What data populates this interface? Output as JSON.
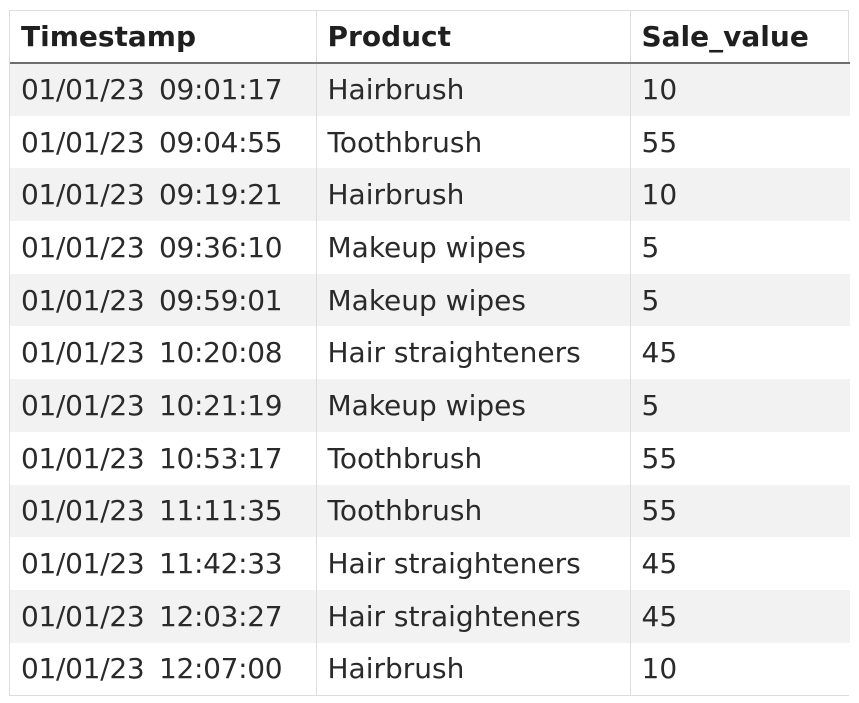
{
  "table": {
    "headers": [
      "Timestamp",
      "Product",
      "Sale_value"
    ],
    "rows": [
      [
        "01/01/23  09:01:17",
        "Hairbrush",
        "10"
      ],
      [
        "01/01/23  09:04:55",
        "Toothbrush",
        "55"
      ],
      [
        "01/01/23  09:19:21",
        "Hairbrush",
        "10"
      ],
      [
        "01/01/23  09:36:10",
        "Makeup wipes",
        "5"
      ],
      [
        "01/01/23  09:59:01",
        "Makeup wipes",
        "5"
      ],
      [
        "01/01/23  10:20:08",
        "Hair straighteners",
        "45"
      ],
      [
        "01/01/23  10:21:19",
        "Makeup wipes",
        "5"
      ],
      [
        "01/01/23  10:53:17",
        "Toothbrush",
        "55"
      ],
      [
        "01/01/23  11:11:35",
        "Toothbrush",
        "55"
      ],
      [
        "01/01/23  11:42:33",
        "Hair straighteners",
        "45"
      ],
      [
        "01/01/23  12:03:27",
        "Hair straighteners",
        "45"
      ],
      [
        "01/01/23  12:07:00",
        "Hairbrush",
        "10"
      ]
    ]
  },
  "colors": {
    "header_rule": "#6e6e6e",
    "stripe": "#f2f2f2",
    "grid": "#dddddd"
  }
}
